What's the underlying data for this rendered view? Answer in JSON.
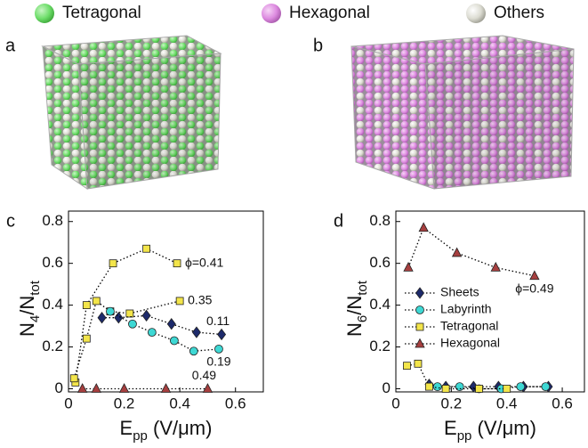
{
  "legend": [
    "Tetragonal",
    "Hexagonal",
    "Others"
  ],
  "renders": [
    "a",
    "b"
  ],
  "chart_data": [
    {
      "type": "line",
      "panel": "c",
      "x_label": [
        {
          "text": "E"
        },
        {
          "text": "pp",
          "sub": true
        },
        {
          "text": " (V/μm)"
        }
      ],
      "y_label": [
        {
          "text": "N"
        },
        {
          "text": "4",
          "sub": true
        },
        {
          "text": "/N"
        },
        {
          "text": "tot",
          "sub": true
        }
      ],
      "xlim": [
        0,
        0.7
      ],
      "ylim": [
        -0.015,
        0.85
      ],
      "xticks": [
        0,
        0.2,
        0.4,
        0.6
      ],
      "yticks": [
        0,
        0.2,
        0.4,
        0.6,
        0.8
      ],
      "series": [
        {
          "marker": "square",
          "color": "#f3e54a",
          "label": "ϕ=0.41",
          "label_pos": "right",
          "x": [
            0.025,
            0.065,
            0.16,
            0.28,
            0.39
          ],
          "values": [
            0.03,
            0.4,
            0.6,
            0.67,
            0.6
          ]
        },
        {
          "marker": "square",
          "color": "#f3e54a",
          "label": "0.35",
          "label_pos": "right",
          "x": [
            0.02,
            0.065,
            0.1,
            0.15,
            0.22,
            0.4
          ],
          "values": [
            0.05,
            0.24,
            0.42,
            0.37,
            0.36,
            0.42
          ]
        },
        {
          "marker": "diamond",
          "color": "#1d2a6b",
          "label": "0.11",
          "label_pos": "above",
          "x": [
            0.12,
            0.18,
            0.28,
            0.37,
            0.46,
            0.55
          ],
          "values": [
            0.34,
            0.34,
            0.35,
            0.31,
            0.27,
            0.26
          ]
        },
        {
          "marker": "circle",
          "color": "#3ed8d4",
          "label": "0.19",
          "label_pos": "below",
          "x": [
            0.15,
            0.23,
            0.3,
            0.38,
            0.45,
            0.54
          ],
          "values": [
            0.37,
            0.31,
            0.27,
            0.23,
            0.18,
            0.19
          ]
        },
        {
          "marker": "triangle",
          "color": "#a63f3f",
          "label": "0.49",
          "label_pos": "above",
          "x": [
            0.05,
            0.1,
            0.2,
            0.35,
            0.5
          ],
          "values": [
            0,
            0,
            0,
            0,
            0
          ]
        }
      ]
    },
    {
      "type": "line",
      "panel": "d",
      "x_label": [
        {
          "text": "E"
        },
        {
          "text": "pp",
          "sub": true
        },
        {
          "text": " (V/μm)"
        }
      ],
      "y_label": [
        {
          "text": "N"
        },
        {
          "text": "6",
          "sub": true
        },
        {
          "text": "/N"
        },
        {
          "text": "tot",
          "sub": true
        }
      ],
      "xlim": [
        0,
        0.68
      ],
      "ylim": [
        -0.015,
        0.85
      ],
      "xticks": [
        0,
        0.2,
        0.4,
        0.6
      ],
      "yticks": [
        0,
        0.2,
        0.4,
        0.6,
        0.8
      ],
      "legend_loc": "center left",
      "series": [
        {
          "name": "Sheets",
          "marker": "diamond",
          "color": "#1d2a6b",
          "x": [
            0.12,
            0.18,
            0.28,
            0.37,
            0.46,
            0.55
          ],
          "values": [
            0.02,
            0.01,
            0.01,
            0.01,
            0.01,
            0.01
          ]
        },
        {
          "name": "Labyrinth",
          "marker": "circle",
          "color": "#3ed8d4",
          "x": [
            0.15,
            0.23,
            0.3,
            0.38,
            0.45,
            0.54
          ],
          "values": [
            0.01,
            0.01,
            0,
            0,
            0.01,
            0.01
          ]
        },
        {
          "name": "Tetragonal",
          "marker": "square",
          "color": "#f3e54a",
          "x": [
            0.04,
            0.08,
            0.12,
            0.18,
            0.3,
            0.4
          ],
          "values": [
            0.11,
            0.12,
            0.01,
            0,
            0,
            0
          ]
        },
        {
          "name": "Hexagonal",
          "marker": "triangle",
          "color": "#a63f3f",
          "label": "ϕ=0.49",
          "label_pos": "below",
          "x": [
            0.045,
            0.1,
            0.22,
            0.36,
            0.5
          ],
          "values": [
            0.58,
            0.77,
            0.65,
            0.58,
            0.54
          ]
        }
      ]
    }
  ]
}
